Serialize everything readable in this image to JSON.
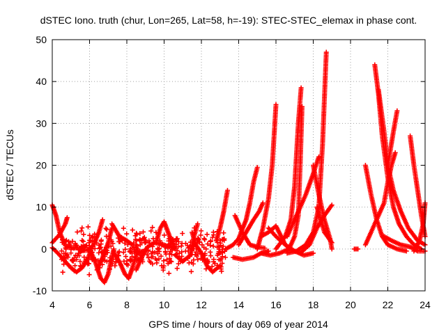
{
  "chart_data": {
    "type": "scatter",
    "title": "dSTEC Iono. truth (chur, Lon=265, Lat=58, h=-19): STEC-STEC_elemax in phase cont.",
    "xlabel": "GPS time / hours of day 069 of year 2014",
    "ylabel": "dSTEC  / TECUs",
    "xlim": [
      4,
      24
    ],
    "ylim": [
      -10,
      50
    ],
    "xticks": [
      4,
      6,
      8,
      10,
      12,
      14,
      16,
      18,
      20,
      22,
      24
    ],
    "yticks": [
      -10,
      0,
      10,
      20,
      30,
      40,
      50
    ],
    "grid": true,
    "marker": "plus",
    "marker_color": "#ff0000",
    "series": [
      {
        "points": [
          [
            4.0,
            10.5
          ],
          [
            4.2,
            8
          ],
          [
            4.4,
            4
          ],
          [
            4.7,
            0.8
          ],
          [
            5.0,
            0.3
          ],
          [
            5.5,
            0.2
          ]
        ]
      },
      {
        "points": [
          [
            4.0,
            0.3
          ],
          [
            4.3,
            -1.0
          ],
          [
            4.7,
            -3.0
          ],
          [
            5.0,
            -4.5
          ],
          [
            5.3,
            -5.5
          ],
          [
            5.6,
            -4.5
          ],
          [
            5.9,
            -2.5
          ],
          [
            6.1,
            0
          ]
        ]
      },
      {
        "points": [
          [
            4.0,
            1.5
          ],
          [
            4.4,
            3.5
          ],
          [
            4.7,
            6
          ],
          [
            4.8,
            7.5
          ]
        ]
      },
      {
        "points": [
          [
            5.5,
            -0.5
          ],
          [
            5.9,
            -0.3
          ],
          [
            6.2,
            0.8
          ],
          [
            6.5,
            4
          ],
          [
            6.7,
            7
          ]
        ]
      },
      {
        "points": [
          [
            6.0,
            0
          ],
          [
            6.3,
            -3
          ],
          [
            6.6,
            -7
          ],
          [
            6.8,
            -8
          ],
          [
            7.0,
            -6
          ],
          [
            7.3,
            0
          ]
        ]
      },
      {
        "points": [
          [
            6.4,
            -5
          ],
          [
            6.7,
            -2
          ],
          [
            7.0,
            1.5
          ],
          [
            7.2,
            5
          ]
        ]
      },
      {
        "points": [
          [
            7.3,
            -1
          ],
          [
            7.6,
            -3
          ],
          [
            7.9,
            -6
          ],
          [
            8.1,
            -7
          ],
          [
            8.3,
            -4.5
          ],
          [
            8.6,
            0
          ]
        ]
      },
      {
        "points": [
          [
            7.2,
            6
          ],
          [
            7.6,
            3
          ],
          [
            8.0,
            2
          ],
          [
            8.3,
            1
          ]
        ]
      },
      {
        "points": [
          [
            8.5,
            -5
          ],
          [
            8.8,
            -2
          ],
          [
            9.1,
            0.5
          ],
          [
            9.5,
            1.5
          ],
          [
            10.0,
            1.0
          ],
          [
            10.6,
            0
          ]
        ]
      },
      {
        "points": [
          [
            9.6,
            2
          ],
          [
            9.8,
            5
          ],
          [
            10.0,
            6.5
          ],
          [
            10.3,
            3
          ],
          [
            10.6,
            0
          ]
        ]
      },
      {
        "points": [
          [
            10.6,
            -1.5
          ],
          [
            11.0,
            -3
          ],
          [
            11.4,
            -1.5
          ],
          [
            11.6,
            3
          ],
          [
            11.8,
            6
          ]
        ]
      },
      {
        "points": [
          [
            11.5,
            4
          ],
          [
            11.7,
            1
          ],
          [
            12.0,
            -1.0
          ],
          [
            12.3,
            -4
          ],
          [
            12.6,
            -5.5
          ],
          [
            13.0,
            -4
          ]
        ]
      },
      {
        "points": [
          [
            12.8,
            2
          ],
          [
            13.0,
            5
          ],
          [
            13.2,
            9
          ],
          [
            13.4,
            14
          ]
        ]
      },
      {
        "points": [
          [
            13.3,
            0
          ],
          [
            13.7,
            1
          ],
          [
            14.0,
            2.5
          ],
          [
            14.4,
            7
          ],
          [
            14.6,
            11
          ],
          [
            14.8,
            16
          ],
          [
            15.0,
            19.5
          ]
        ]
      },
      {
        "points": [
          [
            13.8,
            8
          ],
          [
            14.2,
            4
          ],
          [
            14.6,
            1
          ],
          [
            15.0,
            0.5
          ],
          [
            15.4,
            0.2
          ]
        ]
      },
      {
        "points": [
          [
            14.0,
            1
          ],
          [
            14.4,
            4
          ],
          [
            14.8,
            7
          ],
          [
            15.1,
            9
          ],
          [
            15.3,
            11
          ]
        ]
      },
      {
        "points": [
          [
            15.0,
            0
          ],
          [
            15.3,
            5
          ],
          [
            15.6,
            12
          ],
          [
            15.8,
            20
          ],
          [
            15.9,
            27
          ],
          [
            16.0,
            34.5
          ]
        ]
      },
      {
        "points": [
          [
            13.7,
            -2
          ],
          [
            14.2,
            -2.5
          ],
          [
            14.8,
            -2
          ],
          [
            15.2,
            -1
          ],
          [
            15.6,
            -0.5
          ]
        ]
      },
      {
        "points": [
          [
            15.2,
            -1
          ],
          [
            15.7,
            -1.5
          ],
          [
            16.2,
            -1
          ],
          [
            16.7,
            0
          ],
          [
            17.0,
            3
          ],
          [
            17.2,
            8
          ],
          [
            17.3,
            20
          ],
          [
            17.4,
            34
          ]
        ]
      },
      {
        "points": [
          [
            16.0,
            0
          ],
          [
            16.5,
            3
          ],
          [
            16.8,
            7
          ],
          [
            17.0,
            15
          ],
          [
            17.2,
            30
          ],
          [
            17.35,
            38.5
          ]
        ]
      },
      {
        "points": [
          [
            15.2,
            3
          ],
          [
            15.6,
            4
          ],
          [
            16.0,
            5.5
          ],
          [
            16.5,
            1
          ],
          [
            16.8,
            0
          ]
        ]
      },
      {
        "points": [
          [
            15.6,
            5
          ],
          [
            16.0,
            3
          ],
          [
            16.5,
            1
          ],
          [
            17.0,
            -0.5
          ],
          [
            17.5,
            -1.5
          ],
          [
            18.0,
            -1
          ]
        ]
      },
      {
        "points": [
          [
            16.6,
            -1
          ],
          [
            17.1,
            -0.5
          ],
          [
            17.6,
            1
          ],
          [
            18.0,
            4
          ],
          [
            18.3,
            10
          ],
          [
            18.5,
            25
          ],
          [
            18.7,
            47
          ]
        ]
      },
      {
        "points": [
          [
            17.3,
            -1
          ],
          [
            17.8,
            1
          ],
          [
            18.2,
            5
          ],
          [
            18.6,
            8
          ],
          [
            19.0,
            10.5
          ]
        ]
      },
      {
        "points": [
          [
            16.6,
            3
          ],
          [
            16.9,
            6
          ],
          [
            17.2,
            9
          ],
          [
            17.6,
            13
          ],
          [
            18.0,
            18
          ],
          [
            18.3,
            22
          ]
        ]
      },
      {
        "points": [
          [
            18.0,
            20
          ],
          [
            18.3,
            13
          ],
          [
            18.6,
            7
          ],
          [
            18.9,
            2.5
          ],
          [
            19.0,
            0
          ]
        ]
      },
      {
        "points": [
          [
            18.2,
            10
          ],
          [
            18.6,
            4
          ],
          [
            19.0,
            1.5
          ]
        ]
      },
      {
        "points": [
          [
            20.2,
            0
          ],
          [
            20.4,
            0
          ]
        ]
      },
      {
        "points": [
          [
            20.8,
            20
          ],
          [
            21.1,
            13
          ],
          [
            21.4,
            7
          ],
          [
            21.7,
            3
          ],
          [
            22.0,
            1
          ],
          [
            22.5,
            0
          ],
          [
            23.0,
            -0.5
          ]
        ]
      },
      {
        "points": [
          [
            20.8,
            1
          ],
          [
            21.2,
            5
          ],
          [
            21.5,
            8
          ],
          [
            21.8,
            11
          ],
          [
            22.0,
            16
          ],
          [
            22.2,
            20
          ],
          [
            22.4,
            23
          ]
        ]
      },
      {
        "points": [
          [
            21.3,
            44
          ],
          [
            21.5,
            37
          ],
          [
            21.7,
            27
          ],
          [
            22.0,
            17
          ],
          [
            22.3,
            10
          ],
          [
            22.6,
            6
          ],
          [
            23.0,
            3
          ],
          [
            23.4,
            1
          ],
          [
            23.8,
            0
          ]
        ]
      },
      {
        "points": [
          [
            21.5,
            38
          ],
          [
            21.8,
            28
          ],
          [
            22.0,
            20
          ],
          [
            22.3,
            14
          ],
          [
            22.7,
            9
          ],
          [
            23.1,
            5
          ],
          [
            23.6,
            2
          ],
          [
            24.0,
            1
          ]
        ]
      },
      {
        "points": [
          [
            22.0,
            20
          ],
          [
            22.3,
            28
          ],
          [
            22.5,
            33
          ]
        ]
      },
      {
        "points": [
          [
            21.8,
            3
          ],
          [
            22.2,
            2
          ],
          [
            22.7,
            1
          ],
          [
            23.2,
            0.5
          ],
          [
            23.6,
            -0.5
          ],
          [
            24.0,
            -0.5
          ]
        ]
      },
      {
        "points": [
          [
            23.2,
            27
          ],
          [
            23.4,
            20
          ],
          [
            23.6,
            14
          ],
          [
            23.8,
            8
          ],
          [
            24.0,
            3
          ]
        ]
      },
      {
        "points": [
          [
            23.4,
            -0.5
          ],
          [
            23.7,
            2
          ],
          [
            23.9,
            6
          ],
          [
            24.0,
            11
          ]
        ]
      }
    ],
    "noise_band": {
      "x": [
        4.5,
        13.3
      ],
      "y": [
        -7,
        8
      ]
    }
  }
}
